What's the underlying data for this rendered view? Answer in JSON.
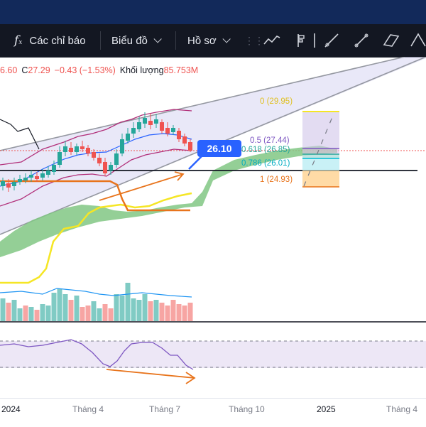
{
  "toolbar": {
    "indicators_label": "Các chỉ báo",
    "chart_label": "Biểu đồ",
    "profile_label": "Hồ sơ",
    "fx_icon": "function-icon"
  },
  "ohlc": {
    "prefix": "6.60",
    "close_label": "C",
    "close_value": "27.29",
    "change": "−0.43 (−1.53%)",
    "volume_label": "Khối lượng",
    "volume_value": "85.753M"
  },
  "price_tag": "26.10",
  "fib_levels": {
    "l0": "0 (29.95)",
    "l05": "0.5 (27.44)",
    "l0618": "0.618 (26.85)",
    "l0786": "0.786 (26.01)",
    "l1": "1 (24.93)"
  },
  "xaxis": {
    "t1": "2024",
    "t2": "Tháng 4",
    "t3": "Tháng 7",
    "t4": "Tháng 10",
    "t5": "2025",
    "t6": "Tháng 4"
  },
  "colors": {
    "up": "#26a69a",
    "down": "#ef5350",
    "cloud": "#81c784",
    "accent": "#2962ff",
    "orange": "#e8741c",
    "yellow": "#f5e625"
  }
}
